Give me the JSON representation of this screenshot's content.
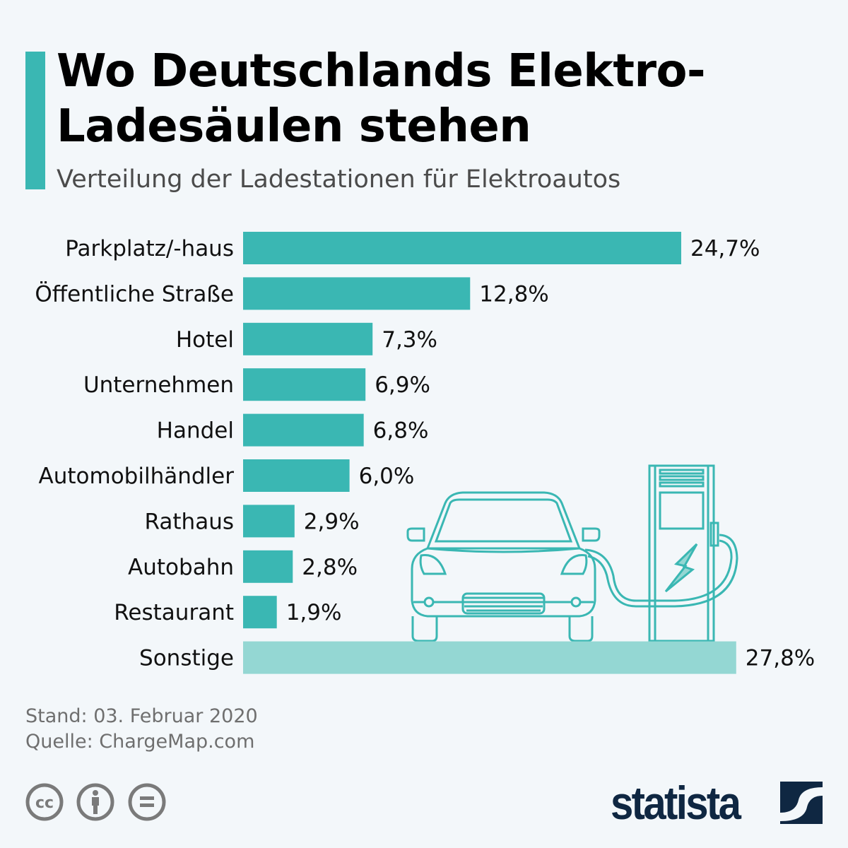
{
  "header": {
    "title": "Wo Deutschlands Elektro-Ladesäulen stehen",
    "title_line1": "Wo Deutschlands Elektro-",
    "title_line2": "Ladesäulen stehen",
    "subtitle": "Verteilung der Ladestationen für Elektroautos"
  },
  "chart_data": {
    "type": "bar",
    "orientation": "horizontal",
    "categories": [
      "Parkplatz/-haus",
      "Öffentliche Straße",
      "Hotel",
      "Unternehmen",
      "Handel",
      "Automobilhändler",
      "Rathaus",
      "Autobahn",
      "Restaurant",
      "Sonstige"
    ],
    "values": [
      24.7,
      12.8,
      7.3,
      6.9,
      6.8,
      6.0,
      2.9,
      2.8,
      1.9,
      27.8
    ],
    "data_labels": [
      "24,7%",
      "12,8%",
      "7,3%",
      "6,9%",
      "6,8%",
      "6,0%",
      "2,9%",
      "2,8%",
      "1,9%",
      "27,8%"
    ],
    "unit": "%",
    "colors": {
      "bar": "#3ab7b3",
      "highlight_other": "#94d7d3"
    },
    "grid": false,
    "legend": "none"
  },
  "footer": {
    "date": "Stand: 03. Februar 2020",
    "source": "Quelle: ChargeMap.com",
    "license_icons": [
      "cc-icon",
      "attribution-icon",
      "no-derivatives-icon"
    ],
    "brand": "statista"
  }
}
